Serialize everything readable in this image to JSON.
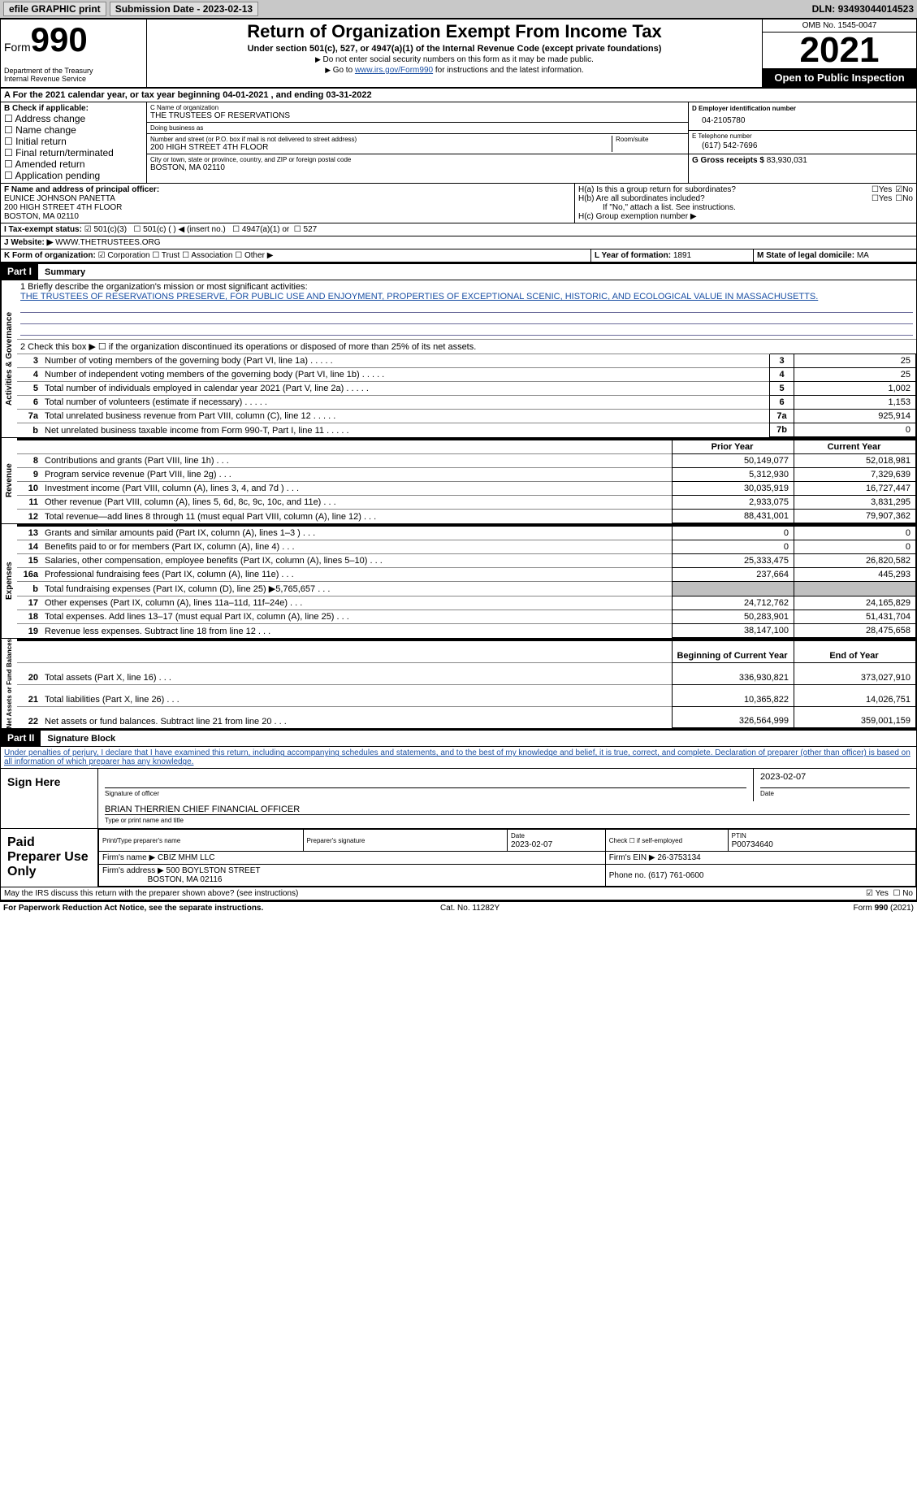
{
  "topbar": {
    "efile": "efile GRAPHIC print",
    "submission_label": "Submission Date - ",
    "submission_date": "2023-02-13",
    "dln_label": "DLN: ",
    "dln": "93493044014523"
  },
  "header": {
    "form_label": "Form",
    "form_number": "990",
    "dept": "Department of the Treasury\nInternal Revenue Service",
    "title": "Return of Organization Exempt From Income Tax",
    "subtitle": "Under section 501(c), 527, or 4947(a)(1) of the Internal Revenue Code (except private foundations)",
    "note_ssn": "Do not enter social security numbers on this form as it may be made public.",
    "note_goto_prefix": "Go to ",
    "note_goto_link": "www.irs.gov/Form990",
    "note_goto_suffix": " for instructions and the latest information.",
    "omb": "OMB No. 1545-0047",
    "year": "2021",
    "open_public": "Open to Public Inspection"
  },
  "a_line": {
    "prefix": "A For the 2021 calendar year, or tax year beginning ",
    "begin": "04-01-2021",
    "mid": " , and ending ",
    "end": "03-31-2022"
  },
  "section": {
    "b_label": "B Check if applicable:",
    "b_items": [
      "Address change",
      "Name change",
      "Initial return",
      "Final return/terminated",
      "Amended return",
      "Application pending"
    ],
    "c_name_label": "C Name of organization",
    "org_name": "THE TRUSTEES OF RESERVATIONS",
    "dba_label": "Doing business as",
    "dba": "",
    "street_label": "Number and street (or P.O. box if mail is not delivered to street address)",
    "room_label": "Room/suite",
    "street": "200 HIGH STREET 4TH FLOOR",
    "city_label": "City or town, state or province, country, and ZIP or foreign postal code",
    "city": "BOSTON, MA  02110",
    "d_label": "D Employer identification number",
    "ein": "04-2105780",
    "e_label": "E Telephone number",
    "phone": "(617) 542-7696",
    "g_label": "G Gross receipts $ ",
    "gross": "83,930,031",
    "f_label": "F Name and address of principal officer:",
    "officer_name": "EUNICE JOHNSON PANETTA",
    "officer_addr1": "200 HIGH STREET 4TH FLOOR",
    "officer_addr2": "BOSTON, MA  02110",
    "ha_label": "H(a)  Is this a group return for subordinates?",
    "hb_label": "H(b)  Are all subordinates included?",
    "hb_note": "If \"No,\" attach a list. See instructions.",
    "hc_label": "H(c)  Group exemption number ▶",
    "yes": "Yes",
    "no": "No",
    "i_label": "I    Tax-exempt status:",
    "i_501c3": "501(c)(3)",
    "i_501c": "501(c) (   ) ◀ (insert no.)",
    "i_4947": "4947(a)(1) or",
    "i_527": "527",
    "j_label": "J    Website: ▶",
    "website": "WWW.THETRUSTEES.ORG",
    "k_label": "K Form of organization:",
    "k_corp": "Corporation",
    "k_trust": "Trust",
    "k_assoc": "Association",
    "k_other": "Other ▶",
    "l_label": "L Year of formation: ",
    "l_val": "1891",
    "m_label": "M State of legal domicile: ",
    "m_val": "MA"
  },
  "part1": {
    "title": "Part I",
    "heading": "Summary",
    "q1_label": "1   Briefly describe the organization's mission or most significant activities:",
    "mission": "THE TRUSTEES OF RESERVATIONS PRESERVE, FOR PUBLIC USE AND ENJOYMENT, PROPERTIES OF EXCEPTIONAL SCENIC, HISTORIC, AND ECOLOGICAL VALUE IN MASSACHUSETTS.",
    "q2": "2   Check this box ▶ ☐  if the organization discontinued its operations or disposed of more than 25% of its net assets.",
    "rows_gov": [
      {
        "n": "3",
        "label": "Number of voting members of the governing body (Part VI, line 1a)",
        "box": "3",
        "val": "25"
      },
      {
        "n": "4",
        "label": "Number of independent voting members of the governing body (Part VI, line 1b)",
        "box": "4",
        "val": "25"
      },
      {
        "n": "5",
        "label": "Total number of individuals employed in calendar year 2021 (Part V, line 2a)",
        "box": "5",
        "val": "1,002"
      },
      {
        "n": "6",
        "label": "Total number of volunteers (estimate if necessary)",
        "box": "6",
        "val": "1,153"
      },
      {
        "n": "7a",
        "label": "Total unrelated business revenue from Part VIII, column (C), line 12",
        "box": "7a",
        "val": "925,914"
      },
      {
        "n": "b",
        "label": "Net unrelated business taxable income from Form 990-T, Part I, line 11",
        "box": "7b",
        "val": "0"
      }
    ],
    "col_head_prior": "Prior Year",
    "col_head_current": "Current Year",
    "rows_rev": [
      {
        "n": "8",
        "label": "Contributions and grants (Part VIII, line 1h)",
        "prior": "50,149,077",
        "curr": "52,018,981"
      },
      {
        "n": "9",
        "label": "Program service revenue (Part VIII, line 2g)",
        "prior": "5,312,930",
        "curr": "7,329,639"
      },
      {
        "n": "10",
        "label": "Investment income (Part VIII, column (A), lines 3, 4, and 7d )",
        "prior": "30,035,919",
        "curr": "16,727,447"
      },
      {
        "n": "11",
        "label": "Other revenue (Part VIII, column (A), lines 5, 6d, 8c, 9c, 10c, and 11e)",
        "prior": "2,933,075",
        "curr": "3,831,295"
      },
      {
        "n": "12",
        "label": "Total revenue—add lines 8 through 11 (must equal Part VIII, column (A), line 12)",
        "prior": "88,431,001",
        "curr": "79,907,362"
      }
    ],
    "rows_exp": [
      {
        "n": "13",
        "label": "Grants and similar amounts paid (Part IX, column (A), lines 1–3 )",
        "prior": "0",
        "curr": "0"
      },
      {
        "n": "14",
        "label": "Benefits paid to or for members (Part IX, column (A), line 4)",
        "prior": "0",
        "curr": "0"
      },
      {
        "n": "15",
        "label": "Salaries, other compensation, employee benefits (Part IX, column (A), lines 5–10)",
        "prior": "25,333,475",
        "curr": "26,820,582"
      },
      {
        "n": "16a",
        "label": "Professional fundraising fees (Part IX, column (A), line 11e)",
        "prior": "237,664",
        "curr": "445,293"
      },
      {
        "n": "b",
        "label": "Total fundraising expenses (Part IX, column (D), line 25) ▶5,765,657",
        "prior": "__shade__",
        "curr": "__shade__"
      },
      {
        "n": "17",
        "label": "Other expenses (Part IX, column (A), lines 11a–11d, 11f–24e)",
        "prior": "24,712,762",
        "curr": "24,165,829"
      },
      {
        "n": "18",
        "label": "Total expenses. Add lines 13–17 (must equal Part IX, column (A), line 25)",
        "prior": "50,283,901",
        "curr": "51,431,704"
      },
      {
        "n": "19",
        "label": "Revenue less expenses. Subtract line 18 from line 12",
        "prior": "38,147,100",
        "curr": "28,475,658"
      }
    ],
    "col_head_begin": "Beginning of Current Year",
    "col_head_end": "End of Year",
    "rows_net": [
      {
        "n": "20",
        "label": "Total assets (Part X, line 16)",
        "prior": "336,930,821",
        "curr": "373,027,910"
      },
      {
        "n": "21",
        "label": "Total liabilities (Part X, line 26)",
        "prior": "10,365,822",
        "curr": "14,026,751"
      },
      {
        "n": "22",
        "label": "Net assets or fund balances. Subtract line 21 from line 20",
        "prior": "326,564,999",
        "curr": "359,001,159"
      }
    ],
    "vlabel_gov": "Activities & Governance",
    "vlabel_rev": "Revenue",
    "vlabel_exp": "Expenses",
    "vlabel_net": "Net Assets or Fund Balances"
  },
  "part2": {
    "title": "Part II",
    "heading": "Signature Block",
    "declaration": "Under penalties of perjury, I declare that I have examined this return, including accompanying schedules and statements, and to the best of my knowledge and belief, it is true, correct, and complete. Declaration of preparer (other than officer) is based on all information of which preparer has any knowledge.",
    "sign_here": "Sign Here",
    "sig_officer_label": "Signature of officer",
    "sig_date": "2023-02-07",
    "date_label": "Date",
    "officer_print": "BRIAN THERRIEN  CHIEF FINANCIAL OFFICER",
    "officer_print_label": "Type or print name and title",
    "paid_prep": "Paid Preparer Use Only",
    "prep_name_label": "Print/Type preparer's name",
    "prep_sig_label": "Preparer's signature",
    "prep_date_label": "Date",
    "prep_date": "2023-02-07",
    "prep_check_label": "Check ☐ if self-employed",
    "ptin_label": "PTIN",
    "ptin": "P00734640",
    "firm_name_label": "Firm's name    ▶",
    "firm_name": "CBIZ MHM LLC",
    "firm_ein_label": "Firm's EIN ▶",
    "firm_ein": "26-3753134",
    "firm_addr_label": "Firm's address ▶",
    "firm_addr1": "500 BOYLSTON STREET",
    "firm_addr2": "BOSTON, MA  02116",
    "phone_label": "Phone no. ",
    "phone": "(617) 761-0600",
    "discuss": "May the IRS discuss this return with the preparer shown above? (see instructions)",
    "yes": "Yes",
    "no": "No"
  },
  "footer": {
    "paperwork": "For Paperwork Reduction Act Notice, see the separate instructions.",
    "cat": "Cat. No. 11282Y",
    "form": "Form 990 (2021)"
  }
}
